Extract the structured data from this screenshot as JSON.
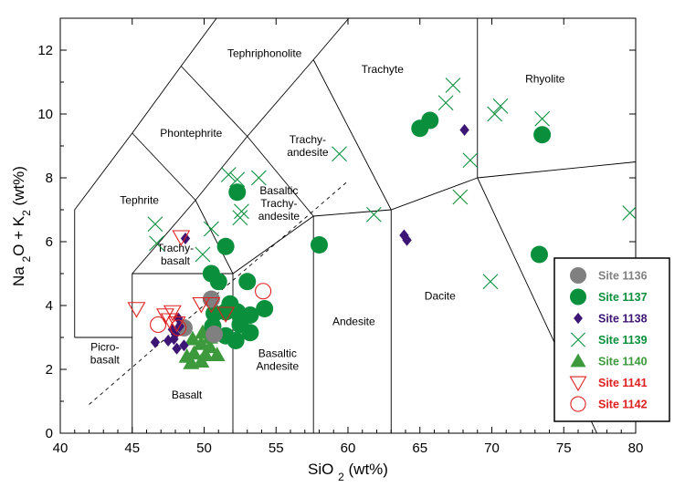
{
  "chart_data": {
    "type": "scatter",
    "xlabel": "SiO2 (wt%)",
    "ylabel": "Na2O + K2 (wt%)",
    "xlim": [
      40,
      80
    ],
    "ylim": [
      0,
      13
    ],
    "xticks": [
      40,
      45,
      50,
      55,
      60,
      65,
      70,
      75,
      80
    ],
    "yticks": [
      0,
      2,
      4,
      6,
      8,
      10,
      12
    ],
    "field_labels": [
      {
        "lines": [
          "Tephriphonolite"
        ],
        "x": 54.2,
        "y": 11.9
      },
      {
        "lines": [
          "Trachyte"
        ],
        "x": 62.4,
        "y": 11.4
      },
      {
        "lines": [
          "Rhyolite"
        ],
        "x": 73.7,
        "y": 11.1
      },
      {
        "lines": [
          "Phontephrite"
        ],
        "x": 49.1,
        "y": 9.4
      },
      {
        "lines": [
          "Trachy-",
          "andesite"
        ],
        "x": 57.2,
        "y": 9.0
      },
      {
        "lines": [
          "Tephrite"
        ],
        "x": 45.5,
        "y": 7.3
      },
      {
        "lines": [
          "Basaltic",
          "Trachy-",
          "andesite"
        ],
        "x": 55.2,
        "y": 7.2
      },
      {
        "lines": [
          "Trachy-",
          "basalt"
        ],
        "x": 48.0,
        "y": 5.6
      },
      {
        "lines": [
          "Dacite"
        ],
        "x": 66.4,
        "y": 4.3
      },
      {
        "lines": [
          "Andesite"
        ],
        "x": 60.4,
        "y": 3.5
      },
      {
        "lines": [
          "Picro-",
          "basalt"
        ],
        "x": 43.1,
        "y": 2.5
      },
      {
        "lines": [
          "Basaltic",
          "Andesite"
        ],
        "x": 55.1,
        "y": 2.3
      },
      {
        "lines": [
          "Basalt"
        ],
        "x": 48.8,
        "y": 1.2
      }
    ],
    "boundaries": [
      [
        [
          41,
          3
        ],
        [
          41,
          7
        ],
        [
          45,
          9.4
        ],
        [
          48.4,
          11.5
        ],
        [
          52.5,
          14
        ]
      ],
      [
        [
          41,
          3
        ],
        [
          45,
          3
        ]
      ],
      [
        [
          45,
          0
        ],
        [
          45,
          5
        ],
        [
          49.4,
          7.3
        ],
        [
          53,
          9.3
        ],
        [
          57.6,
          11.7
        ],
        [
          61,
          13.5
        ]
      ],
      [
        [
          45,
          5
        ],
        [
          52,
          5
        ],
        [
          57.6,
          6.8
        ],
        [
          63,
          7
        ],
        [
          69,
          8
        ]
      ],
      [
        [
          52,
          0
        ],
        [
          52,
          5
        ],
        [
          49.4,
          7.3
        ]
      ],
      [
        [
          57.6,
          0
        ],
        [
          57.6,
          6.8
        ],
        [
          53,
          9.3
        ]
      ],
      [
        [
          63,
          0
        ],
        [
          63,
          7
        ],
        [
          57.6,
          11.7
        ]
      ],
      [
        [
          45,
          9.4
        ],
        [
          49.4,
          7.3
        ]
      ],
      [
        [
          48.4,
          11.5
        ],
        [
          53,
          9.3
        ]
      ],
      [
        [
          69,
          13
        ],
        [
          69,
          8
        ],
        [
          77.3,
          0
        ]
      ],
      [
        [
          69,
          8
        ],
        [
          80,
          8.5
        ]
      ]
    ],
    "dashed_line": [
      [
        42,
        0.9
      ],
      [
        60,
        7.9
      ]
    ],
    "legend": {
      "position": "bottom-right"
    },
    "series": [
      {
        "name": "Site 1136",
        "marker": "circle-filled",
        "color": "#808080",
        "points": [
          [
            50.5,
            4.2
          ],
          [
            50.7,
            3.1
          ],
          [
            48.6,
            3.3
          ]
        ]
      },
      {
        "name": "Site 1137",
        "marker": "circle-filled",
        "color": "#0a8f3c",
        "points": [
          [
            52.3,
            7.55
          ],
          [
            51.5,
            5.85
          ],
          [
            50.5,
            5.0
          ],
          [
            51.0,
            4.75
          ],
          [
            53,
            4.75
          ],
          [
            50.7,
            3.75
          ],
          [
            51.5,
            3.8
          ],
          [
            52.3,
            3.8
          ],
          [
            53.2,
            3.7
          ],
          [
            54.2,
            3.9
          ],
          [
            50.6,
            3.35
          ],
          [
            52.5,
            3.4
          ],
          [
            51.5,
            3.05
          ],
          [
            53.2,
            3.15
          ],
          [
            52.2,
            2.9
          ],
          [
            51.8,
            4.05
          ],
          [
            58.0,
            5.9
          ],
          [
            65.0,
            9.55
          ],
          [
            65.7,
            9.8
          ],
          [
            73.5,
            9.35
          ],
          [
            73.3,
            5.6
          ]
        ]
      },
      {
        "name": "Site 1138",
        "marker": "diamond",
        "color": "#3d1575",
        "points": [
          [
            48.7,
            6.1
          ],
          [
            46.6,
            2.85
          ],
          [
            47.5,
            2.9
          ],
          [
            47.8,
            3.25
          ],
          [
            48.0,
            3.1
          ],
          [
            48.3,
            3.35
          ],
          [
            48.1,
            2.65
          ],
          [
            48.6,
            2.75
          ],
          [
            48.2,
            3.6
          ],
          [
            47.9,
            2.95
          ],
          [
            63.9,
            6.2
          ],
          [
            64.1,
            6.05
          ],
          [
            68.1,
            9.5
          ]
        ]
      },
      {
        "name": "Site 1139",
        "marker": "x",
        "color": "#0a8f3c",
        "points": [
          [
            46.6,
            6.55
          ],
          [
            46.7,
            5.95
          ],
          [
            49.9,
            5.6
          ],
          [
            50.5,
            6.4
          ],
          [
            51.7,
            8.1
          ],
          [
            52.3,
            7.95
          ],
          [
            53.8,
            8.0
          ],
          [
            52.6,
            6.95
          ],
          [
            52.5,
            6.75
          ],
          [
            59.4,
            8.75
          ],
          [
            61.8,
            6.85
          ],
          [
            66.8,
            10.35
          ],
          [
            67.3,
            10.9
          ],
          [
            67.8,
            7.4
          ],
          [
            68.5,
            8.55
          ],
          [
            69.9,
            4.75
          ],
          [
            70.2,
            10.0
          ],
          [
            70.6,
            10.25
          ],
          [
            73.5,
            9.85
          ],
          [
            79.6,
            6.9
          ]
        ]
      },
      {
        "name": "Site 1140",
        "marker": "triangle-up",
        "color": "#3c9a3c",
        "points": [
          [
            48.8,
            2.4
          ],
          [
            49.3,
            2.5
          ],
          [
            49.1,
            2.2
          ],
          [
            49.8,
            2.25
          ],
          [
            50.1,
            2.45
          ],
          [
            50.9,
            2.45
          ],
          [
            50.4,
            2.7
          ],
          [
            49.8,
            2.8
          ],
          [
            50.4,
            3.0
          ],
          [
            49.9,
            3.15
          ],
          [
            49.2,
            2.95
          ]
        ]
      },
      {
        "name": "Site 1141",
        "marker": "triangle-down",
        "color": "#e02020",
        "points": [
          [
            45.3,
            3.9
          ],
          [
            48.4,
            6.15
          ],
          [
            47.3,
            3.7
          ],
          [
            47.6,
            3.55
          ],
          [
            48.1,
            3.45
          ],
          [
            47.8,
            3.8
          ],
          [
            49.8,
            4.05
          ],
          [
            50.5,
            4.05
          ],
          [
            51.5,
            3.75
          ]
        ]
      },
      {
        "name": "Site 1142",
        "marker": "circle-open",
        "color": "#e02020",
        "points": [
          [
            46.8,
            3.4
          ],
          [
            48.2,
            3.3
          ],
          [
            54.1,
            4.45
          ]
        ]
      }
    ]
  }
}
